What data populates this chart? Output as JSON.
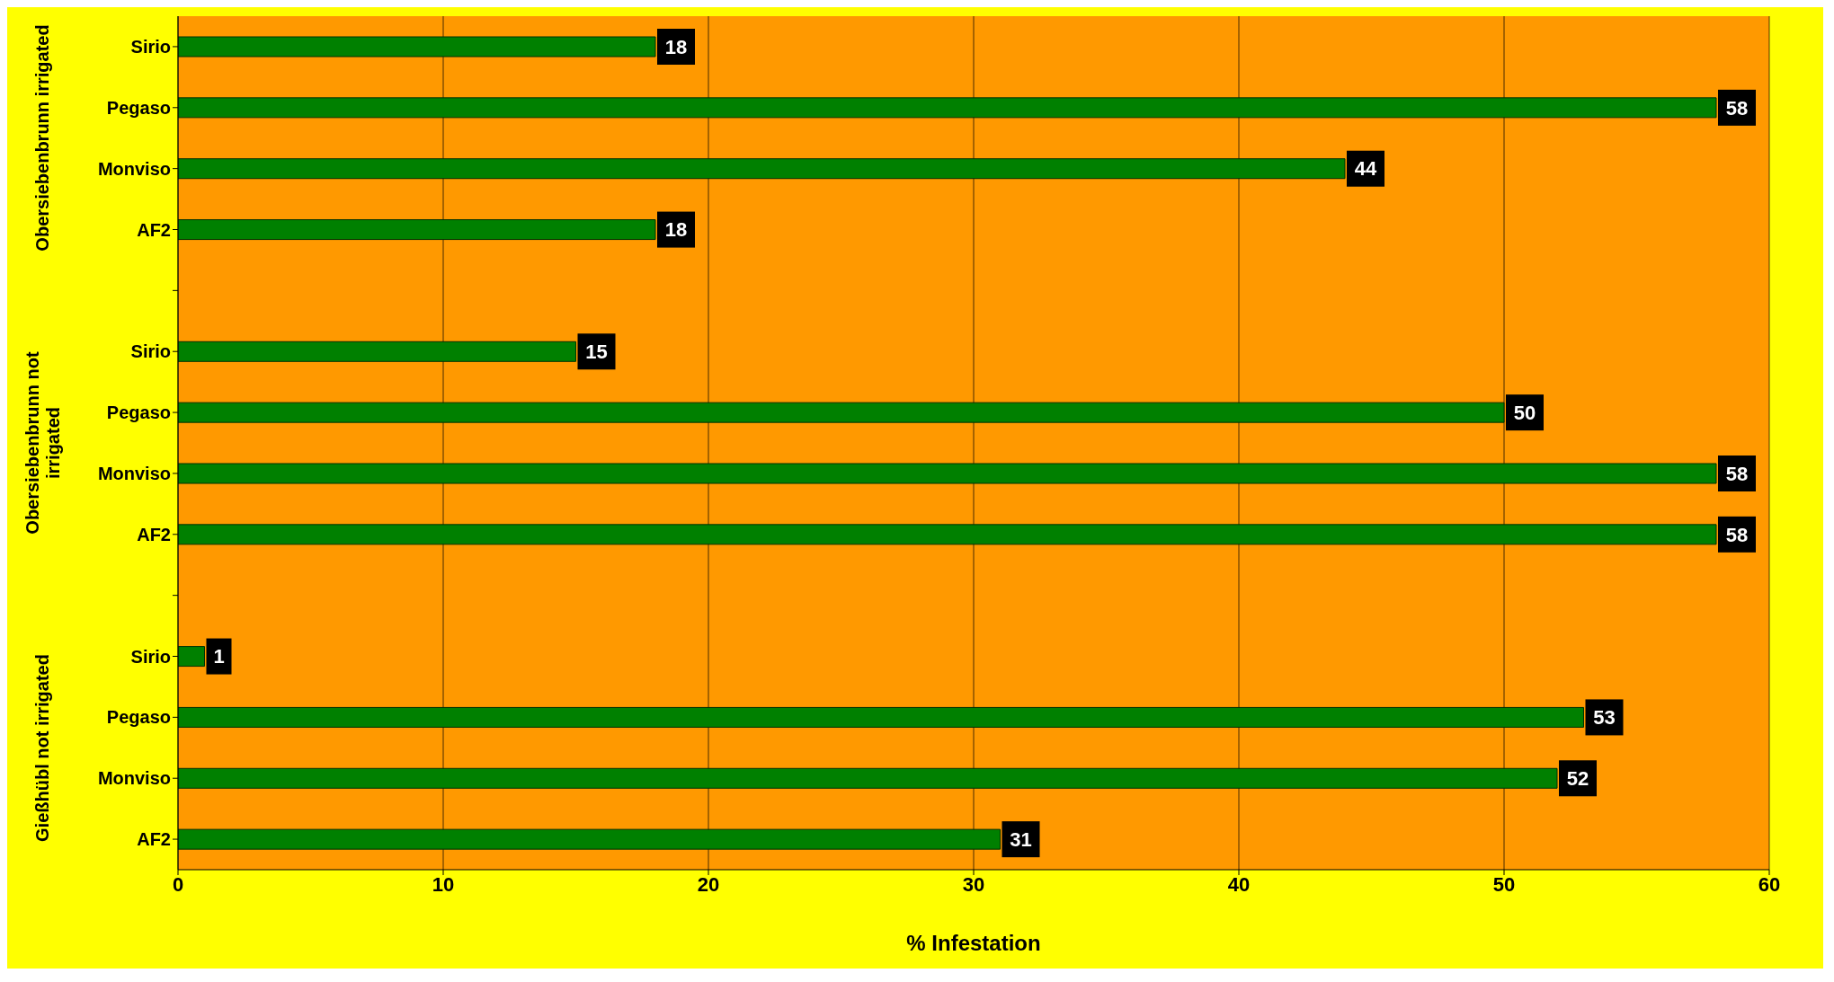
{
  "chart_data": {
    "type": "bar",
    "orientation": "horizontal",
    "xlabel": "% Infestation",
    "categories": [
      "Sirio",
      "Pegaso",
      "Monviso",
      "AF2",
      null,
      "Sirio",
      "Pegaso",
      "Monviso",
      "AF2",
      null,
      "Sirio",
      "Pegaso",
      "Monviso",
      "AF2"
    ],
    "values": [
      18,
      58,
      44,
      18,
      null,
      15,
      50,
      58,
      58,
      null,
      1,
      53,
      52,
      31
    ],
    "color": "#008000",
    "annotations": [
      "Obersiebenbrunn irrigated",
      "Obersiebenbrunn not irrigated",
      "Gießhübl not irrigated"
    ],
    "xlim": [
      0,
      60
    ],
    "xticks": [
      0,
      10,
      20,
      30,
      40,
      50,
      60
    ],
    "grid": "x",
    "data_labels": true
  }
}
